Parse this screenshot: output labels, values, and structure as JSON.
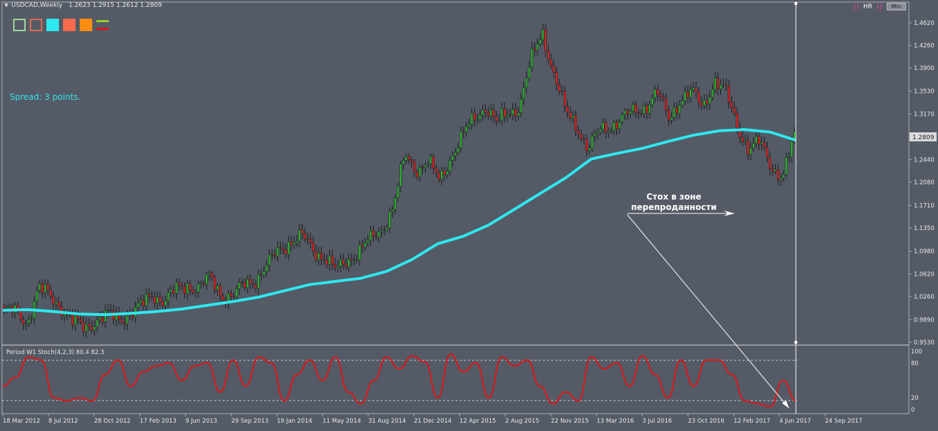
{
  "header": {
    "symbol": "USDCAD,Weekly",
    "ohlc": "1.2623 1.2915 1.2612 1.2809"
  },
  "top_right": {
    "hr_label": "HR",
    "min_label": "Min"
  },
  "spread_text": "Spread: 3 points.",
  "swatches": [
    "#9fd89f",
    "#e06a55",
    "#2fe8ef",
    "#ff6b4e",
    "#ff8c10",
    "lines"
  ],
  "annotation": {
    "line1": "Стох в зоне",
    "line2": "перепроданности"
  },
  "price_axis": {
    "ticks": [
      "1.4620",
      "1.4260",
      "1.3900",
      "1.3530",
      "1.3170",
      "1.2809",
      "1.2440",
      "1.2080",
      "1.1710",
      "1.1350",
      "1.0980",
      "1.0620",
      "1.0260",
      "0.9890",
      "0.9530"
    ],
    "current_price": "1.2809"
  },
  "stoch_panel": {
    "title": "Period W1 Stoch(4,2,3) 80.4 82.3",
    "levels": [
      "100",
      "80",
      "20",
      "0"
    ]
  },
  "time_axis": [
    "18 Mar 2012",
    "8 Jul 2012",
    "28 Oct 2012",
    "17 Feb 2013",
    "9 Jun 2013",
    "29 Sep 2013",
    "19 Jan 2014",
    "11 May 2014",
    "31 Aug 2014",
    "21 Dec 2014",
    "12 Apr 2015",
    "2 Aug 2015",
    "22 Nov 2015",
    "13 Mar 2016",
    "3 Jul 2016",
    "23 Oct 2016",
    "12 Feb 2017",
    "4 Jun 2017",
    "24 Sep 2017"
  ],
  "colors": {
    "background": "#545b66",
    "bull_candle": "#2bb32b",
    "bear_candle": "#e02020",
    "ma_line": "#2fe8ef",
    "stoch_line": "#e01515",
    "text": "#e8e8e8"
  },
  "chart_data": {
    "type": "line",
    "title": "USDCAD,Weekly",
    "series": [
      {
        "values": [
          1.003,
          1.0,
          0.985,
          1.04,
          1.025,
          1.01,
          0.985,
          0.975,
          0.99,
          0.995,
          0.99,
          1.0,
          1.01,
          1.03,
          1.02,
          1.035,
          1.045,
          1.04,
          1.055,
          1.03,
          1.025,
          1.045,
          1.055,
          1.075,
          1.1,
          1.115,
          1.12,
          1.1,
          1.09,
          1.065,
          1.085,
          1.1,
          1.115,
          1.135,
          1.17,
          1.25,
          1.23,
          1.24,
          1.21,
          1.25,
          1.28,
          1.31,
          1.33,
          1.3,
          1.32,
          1.33,
          1.4,
          1.45,
          1.38,
          1.32,
          1.3,
          1.26,
          1.29,
          1.3,
          1.31,
          1.32,
          1.33,
          1.35,
          1.31,
          1.34,
          1.35,
          1.33,
          1.37,
          1.35,
          1.3,
          1.26,
          1.27,
          1.235,
          1.215,
          1.2809
        ]
      },
      {
        "values": [
          1.004,
          1.005,
          1.002,
          0.998,
          0.997,
          0.999,
          1.002,
          1.006,
          1.012,
          1.018,
          1.025,
          1.035,
          1.045,
          1.05,
          1.055,
          1.066,
          1.085,
          1.11,
          1.122,
          1.14,
          1.165,
          1.19,
          1.215,
          1.245,
          1.254,
          1.262,
          1.273,
          1.283,
          1.29,
          1.292,
          1.288,
          1.275
        ]
      },
      {
        "values": [
          40,
          55,
          90,
          85,
          20,
          15,
          20,
          15,
          60,
          85,
          40,
          65,
          75,
          80,
          50,
          75,
          80,
          30,
          85,
          40,
          90,
          80,
          15,
          60,
          85,
          50,
          90,
          30,
          10,
          50,
          90,
          70,
          92,
          82,
          20,
          95,
          65,
          80,
          20,
          90,
          75,
          85,
          40,
          10,
          30,
          15,
          90,
          70,
          80,
          40,
          92,
          60,
          20,
          85,
          40,
          85,
          85,
          60,
          15,
          10,
          5,
          50,
          15
        ]
      }
    ],
    "price_ylim": [
      0.953,
      1.48
    ],
    "stoch_ylim": [
      0,
      100
    ],
    "stoch_levels": [
      80,
      20
    ],
    "grid": false
  }
}
